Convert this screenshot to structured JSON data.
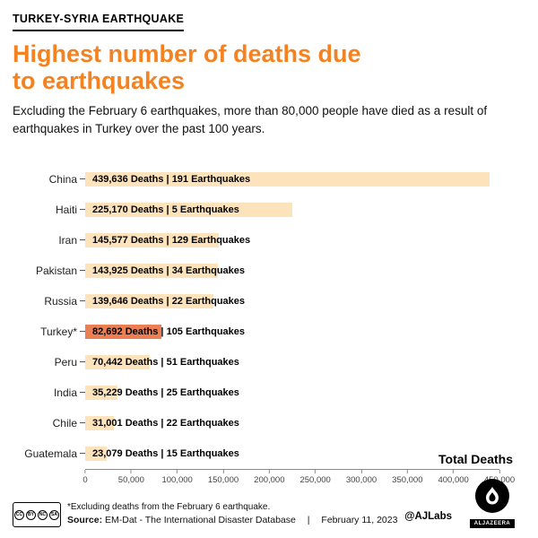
{
  "header": {
    "kicker": "TURKEY-SYRIA EARTHQUAKE",
    "title_line1": "Highest number of deaths due",
    "title_line2": "to earthquakes",
    "subtitle": "Excluding the February 6 earthquakes, more than 80,000 people have died as a result of earthquakes in Turkey over the past 100 years."
  },
  "colors": {
    "accent": "#f58220",
    "bar": "#fce3bc",
    "bar_highlight": "#ec7e54",
    "text": "#1a1a1a"
  },
  "chart_data": {
    "type": "bar",
    "orientation": "horizontal",
    "title": "Highest number of deaths due to earthquakes",
    "categories": [
      "China",
      "Haiti",
      "Iran",
      "Pakistan",
      "Russia",
      "Turkey*",
      "Peru",
      "India",
      "Chile",
      "Guatemala"
    ],
    "values": [
      439636,
      225170,
      145577,
      143925,
      139646,
      82692,
      70442,
      35229,
      31001,
      23079
    ],
    "earthquake_counts": [
      191,
      5,
      129,
      34,
      22,
      105,
      51,
      25,
      22,
      15
    ],
    "bar_labels": [
      "439,636 Deaths | 191 Earthquakes",
      "225,170 Deaths | 5 Earthquakes",
      "145,577 Deaths | 129 Earthquakes",
      "143,925 Deaths | 34 Earthquakes",
      "139,646 Deaths | 22 Earthquakes",
      "82,692 Deaths | 105 Earthquakes",
      "70,442 Deaths | 51 Earthquakes",
      "35,229 Deaths | 25 Earthquakes",
      "31,001 Deaths | 22 Earthquakes",
      "23,079 Deaths | 15 Earthquakes"
    ],
    "highlight_index": 5,
    "xlim": [
      0,
      450000
    ],
    "x_tick_values": [
      0,
      50000,
      100000,
      150000,
      200000,
      250000,
      300000,
      350000,
      400000,
      450000
    ],
    "x_tick_labels": [
      "0",
      "50,000",
      "100,000",
      "150,000",
      "200,000",
      "250,000",
      "300,000",
      "350,000",
      "400,000",
      "450,000"
    ],
    "axis_label": "Total Deaths",
    "grid": false,
    "legend": null
  },
  "footer": {
    "footnote": "*Excluding deaths from the February 6 earthquake.",
    "source_label": "Source:",
    "source_text": "EM-Dat - The International Disaster Database",
    "separator": "|",
    "date": "February 11, 2023",
    "credit": "@AJLabs",
    "logo_text": "ALJAZEERA",
    "cc_badges": [
      "CC",
      "BY",
      "NC",
      "SA"
    ]
  }
}
